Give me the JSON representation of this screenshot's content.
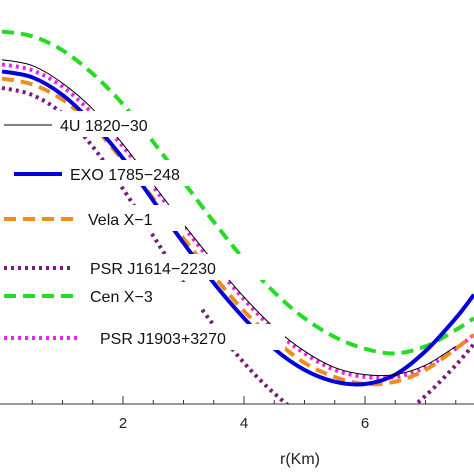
{
  "chart_data": {
    "type": "line",
    "xlabel": "r(Km)",
    "ylabel": "",
    "xlim": [
      0,
      7.5
    ],
    "x_ticks": [
      2,
      4,
      6
    ],
    "x_tick_labels": [
      "2",
      "4",
      "6"
    ],
    "grid": false,
    "legend_placement": "left",
    "series": [
      {
        "name": "4U 1820−30",
        "color": "#000000",
        "style": "solid-thin",
        "points": [
          [
            0,
            0.98
          ],
          [
            0.5,
            0.955
          ],
          [
            1,
            0.88
          ],
          [
            1.5,
            0.77
          ],
          [
            2,
            0.62
          ],
          [
            2.5,
            0.45
          ],
          [
            3,
            0.28
          ],
          [
            3.5,
            0.12
          ],
          [
            4,
            -0.03
          ],
          [
            4.5,
            -0.16
          ],
          [
            5,
            -0.26
          ],
          [
            5.5,
            -0.33
          ],
          [
            6,
            -0.36
          ],
          [
            6.5,
            -0.36
          ],
          [
            7,
            -0.32
          ],
          [
            7.5,
            -0.24
          ]
        ]
      },
      {
        "name": "EXO 1785−248",
        "color": "#0000dd",
        "style": "solid-thick",
        "points": [
          [
            0,
            0.93
          ],
          [
            0.5,
            0.905
          ],
          [
            1,
            0.83
          ],
          [
            1.5,
            0.71
          ],
          [
            2,
            0.56
          ],
          [
            2.5,
            0.38
          ],
          [
            3,
            0.2
          ],
          [
            3.5,
            0.03
          ],
          [
            4,
            -0.12
          ],
          [
            4.5,
            -0.25
          ],
          [
            5,
            -0.34
          ],
          [
            5.5,
            -0.39
          ],
          [
            6,
            -0.4
          ],
          [
            6.5,
            -0.36
          ],
          [
            7,
            -0.26
          ],
          [
            7.5,
            -0.12
          ],
          [
            7.8,
            -0.02
          ]
        ]
      },
      {
        "name": "Vela X−1",
        "color": "#f08c1e",
        "style": "dashed",
        "points": [
          [
            0,
            0.9
          ],
          [
            0.5,
            0.875
          ],
          [
            1,
            0.81
          ],
          [
            1.5,
            0.7
          ],
          [
            2,
            0.55
          ],
          [
            2.5,
            0.39
          ],
          [
            3,
            0.22
          ],
          [
            3.5,
            0.06
          ],
          [
            4,
            -0.09
          ],
          [
            4.5,
            -0.21
          ],
          [
            5,
            -0.31
          ],
          [
            5.5,
            -0.37
          ],
          [
            6,
            -0.4
          ],
          [
            6.5,
            -0.39
          ],
          [
            7,
            -0.34
          ],
          [
            7.5,
            -0.25
          ],
          [
            7.8,
            -0.19
          ]
        ]
      },
      {
        "name": "PSR J1614−2230",
        "color": "#7a1a7a",
        "style": "dotted",
        "points": [
          [
            0,
            0.86
          ],
          [
            0.5,
            0.83
          ],
          [
            1,
            0.75
          ],
          [
            1.5,
            0.61
          ],
          [
            2,
            0.43
          ],
          [
            2.5,
            0.23
          ],
          [
            3,
            0.03
          ],
          [
            3.5,
            -0.15
          ],
          [
            4,
            -0.31
          ],
          [
            4.5,
            -0.44
          ],
          [
            5,
            -0.54
          ],
          [
            5.5,
            -0.59
          ],
          [
            6,
            -0.6
          ],
          [
            6.5,
            -0.55
          ],
          [
            7,
            -0.45
          ],
          [
            7.5,
            -0.32
          ],
          [
            7.8,
            -0.23
          ]
        ]
      },
      {
        "name": "Cen X−3",
        "color": "#22dd22",
        "style": "dashed",
        "points": [
          [
            0,
            1.1
          ],
          [
            0.5,
            1.08
          ],
          [
            1,
            1.02
          ],
          [
            1.5,
            0.92
          ],
          [
            2,
            0.79
          ],
          [
            2.5,
            0.63
          ],
          [
            3,
            0.46
          ],
          [
            3.5,
            0.29
          ],
          [
            4,
            0.13
          ],
          [
            4.5,
            -0.01
          ],
          [
            5,
            -0.12
          ],
          [
            5.5,
            -0.2
          ],
          [
            6,
            -0.25
          ],
          [
            6.5,
            -0.27
          ],
          [
            7,
            -0.24
          ],
          [
            7.5,
            -0.17
          ],
          [
            7.8,
            -0.12
          ]
        ]
      },
      {
        "name": "PSR J1903+3270",
        "color": "#ee22ee",
        "style": "dotted",
        "points": [
          [
            0,
            0.96
          ],
          [
            0.5,
            0.935
          ],
          [
            1,
            0.865
          ],
          [
            1.5,
            0.75
          ],
          [
            2,
            0.61
          ],
          [
            2.5,
            0.44
          ],
          [
            3,
            0.27
          ],
          [
            3.5,
            0.11
          ],
          [
            4,
            -0.04
          ],
          [
            4.5,
            -0.17
          ],
          [
            5,
            -0.27
          ],
          [
            5.5,
            -0.34
          ],
          [
            6,
            -0.37
          ],
          [
            6.5,
            -0.37
          ],
          [
            7,
            -0.33
          ],
          [
            7.5,
            -0.25
          ],
          [
            7.8,
            -0.19
          ]
        ]
      }
    ]
  }
}
